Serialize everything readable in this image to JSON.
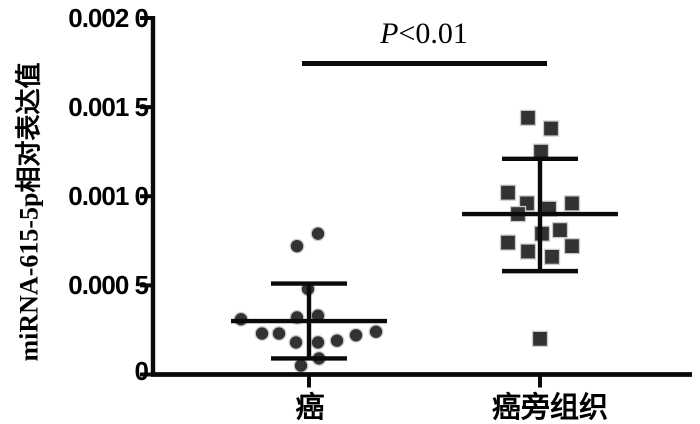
{
  "colors": {
    "background": "#ffffff",
    "axis_line": "#0a0a0a",
    "marker_fill": "#323232",
    "marker_edge": "#cccccc",
    "error_bar": "#0a0a0a",
    "text": "#000000"
  },
  "chart_data": {
    "type": "scatter",
    "title": "",
    "xlabel": "",
    "ylabel": "miRNA-615-5p相对表达值",
    "ylim": [
      0,
      0.002
    ],
    "grid": false,
    "legend": "none",
    "yticks": [
      {
        "label": "0.002 0",
        "value": 0.002
      },
      {
        "label": "0.001 5",
        "value": 0.0015
      },
      {
        "label": "0.001 0",
        "value": 0.001
      },
      {
        "label": "0.000 5",
        "value": 0.0005
      },
      {
        "label": "0",
        "value": 0
      }
    ],
    "annotation": {
      "p_symbol": "P",
      "p_value": "<0.01",
      "compares": [
        "癌",
        "癌旁组织"
      ]
    },
    "groups": [
      {
        "label": "癌",
        "marker": "circle",
        "n": 15,
        "mean": 0.0003,
        "error_high": 0.00051,
        "error_low": 9e-05,
        "points": [
          {
            "dx": 9,
            "v": 0.00079
          },
          {
            "dx": -12,
            "v": 0.00072
          },
          {
            "dx": -1,
            "v": 0.00048
          },
          {
            "dx": -68,
            "v": 0.00031
          },
          {
            "dx": -12,
            "v": 0.00032
          },
          {
            "dx": 9,
            "v": 0.00033
          },
          {
            "dx": -47,
            "v": 0.00023
          },
          {
            "dx": -30,
            "v": 0.00023
          },
          {
            "dx": -13,
            "v": 0.00018
          },
          {
            "dx": 9,
            "v": 0.00018
          },
          {
            "dx": 28,
            "v": 0.00019
          },
          {
            "dx": 47,
            "v": 0.00022
          },
          {
            "dx": 67,
            "v": 0.00024
          },
          {
            "dx": -8,
            "v": 5e-05
          },
          {
            "dx": 10,
            "v": 9e-05
          }
        ]
      },
      {
        "label": "癌旁组织",
        "marker": "square",
        "n": 15,
        "mean": 0.0009,
        "error_high": 0.00121,
        "error_low": 0.00058,
        "points": [
          {
            "dx": -12,
            "v": 0.00144
          },
          {
            "dx": 11,
            "v": 0.00138
          },
          {
            "dx": 1,
            "v": 0.00125
          },
          {
            "dx": -32,
            "v": 0.00102
          },
          {
            "dx": -13,
            "v": 0.00096
          },
          {
            "dx": -22,
            "v": 0.0009
          },
          {
            "dx": 9,
            "v": 0.00093
          },
          {
            "dx": 32,
            "v": 0.00096
          },
          {
            "dx": 2,
            "v": 0.00079
          },
          {
            "dx": 20,
            "v": 0.00081
          },
          {
            "dx": -32,
            "v": 0.00074
          },
          {
            "dx": -12,
            "v": 0.00069
          },
          {
            "dx": 12,
            "v": 0.00066
          },
          {
            "dx": 32,
            "v": 0.00072
          },
          {
            "dx": 0,
            "v": 0.0002
          }
        ]
      }
    ]
  }
}
